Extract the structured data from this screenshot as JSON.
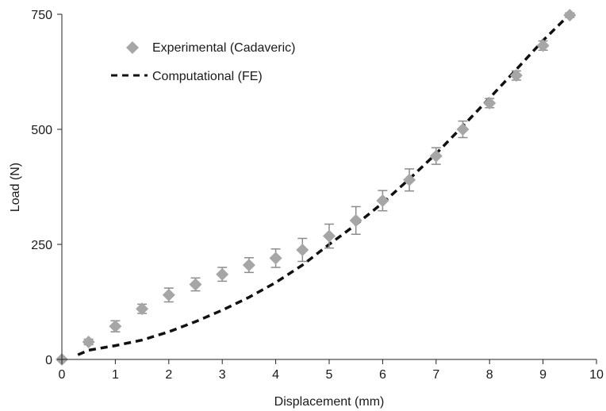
{
  "chart_data": {
    "type": "scatter",
    "title": "",
    "xlabel": "Displacement (mm)",
    "ylabel": "Load (N)",
    "xlim": [
      0,
      10
    ],
    "ylim": [
      0,
      750
    ],
    "x_ticks": [
      "0",
      "1",
      "2",
      "3",
      "4",
      "5",
      "6",
      "7",
      "8",
      "9",
      "10"
    ],
    "y_ticks": [
      "0",
      "250",
      "500",
      "750"
    ],
    "grid": false,
    "legend_position": "top-left",
    "series": [
      {
        "name": "Experimental (Cadaveric)",
        "style": "diamond-markers-with-error-bars",
        "color": "#a6a6a6",
        "error_color": "#8c8c8c",
        "points": [
          {
            "x": 0,
            "y": 0,
            "err": 0
          },
          {
            "x": 0.5,
            "y": 38,
            "err": 6
          },
          {
            "x": 1,
            "y": 72,
            "err": 12
          },
          {
            "x": 1.5,
            "y": 110,
            "err": 10
          },
          {
            "x": 2,
            "y": 140,
            "err": 15
          },
          {
            "x": 2.5,
            "y": 163,
            "err": 14
          },
          {
            "x": 3,
            "y": 185,
            "err": 15
          },
          {
            "x": 3.5,
            "y": 205,
            "err": 16
          },
          {
            "x": 4,
            "y": 220,
            "err": 20
          },
          {
            "x": 4.5,
            "y": 238,
            "err": 25
          },
          {
            "x": 5,
            "y": 268,
            "err": 26
          },
          {
            "x": 5.5,
            "y": 302,
            "err": 30
          },
          {
            "x": 6,
            "y": 345,
            "err": 22
          },
          {
            "x": 6.5,
            "y": 390,
            "err": 24
          },
          {
            "x": 7,
            "y": 442,
            "err": 18
          },
          {
            "x": 7.5,
            "y": 500,
            "err": 18
          },
          {
            "x": 8,
            "y": 557,
            "err": 10
          },
          {
            "x": 8.5,
            "y": 617,
            "err": 10
          },
          {
            "x": 9,
            "y": 682,
            "err": 10
          },
          {
            "x": 9.5,
            "y": 748,
            "err": 5
          }
        ]
      },
      {
        "name": "Computational (FE)",
        "style": "dashed-line",
        "color": "#111111",
        "points": [
          {
            "x": 0.3,
            "y": 10
          },
          {
            "x": 0.5,
            "y": 20
          },
          {
            "x": 1,
            "y": 30
          },
          {
            "x": 1.5,
            "y": 42
          },
          {
            "x": 2,
            "y": 60
          },
          {
            "x": 2.5,
            "y": 82
          },
          {
            "x": 3,
            "y": 107
          },
          {
            "x": 3.5,
            "y": 135
          },
          {
            "x": 4,
            "y": 167
          },
          {
            "x": 4.5,
            "y": 205
          },
          {
            "x": 5,
            "y": 250
          },
          {
            "x": 5.5,
            "y": 293
          },
          {
            "x": 6,
            "y": 340
          },
          {
            "x": 6.5,
            "y": 392
          },
          {
            "x": 7,
            "y": 447
          },
          {
            "x": 7.5,
            "y": 507
          },
          {
            "x": 8,
            "y": 568
          },
          {
            "x": 8.5,
            "y": 630
          },
          {
            "x": 9,
            "y": 693
          },
          {
            "x": 9.5,
            "y": 750
          }
        ]
      }
    ]
  }
}
